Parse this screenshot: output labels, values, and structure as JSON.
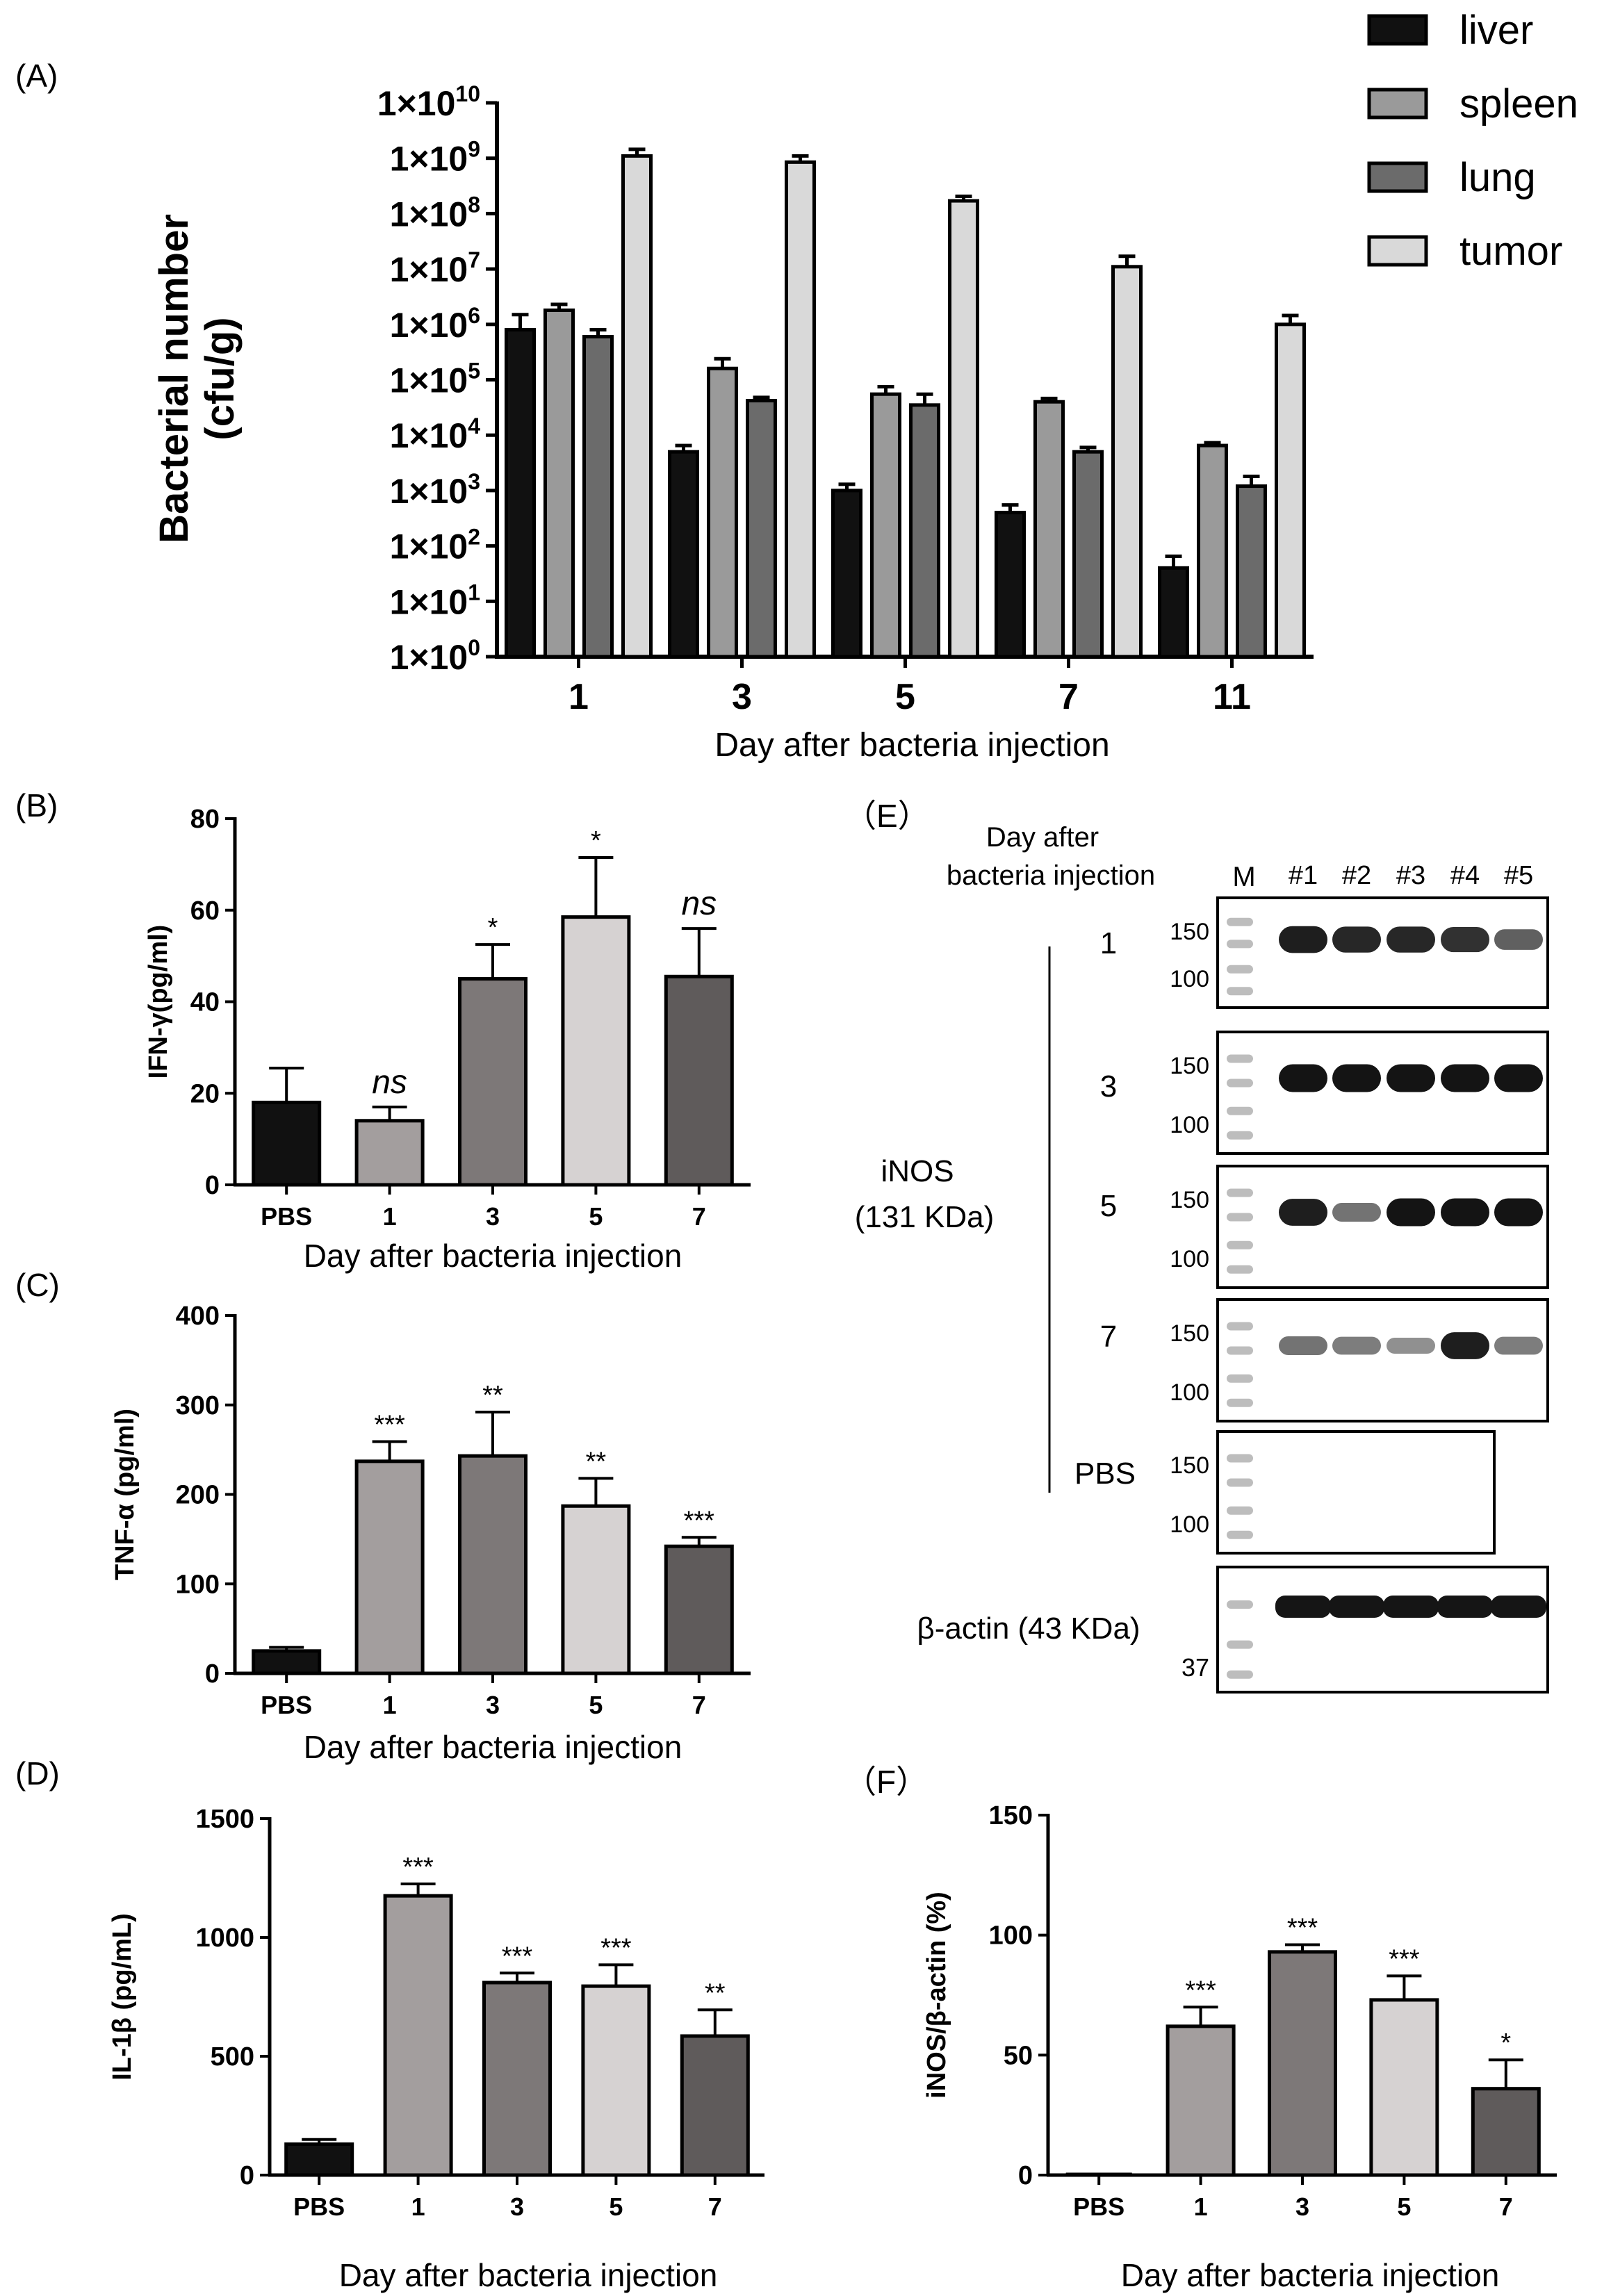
{
  "panels": {
    "A": "(A)",
    "B": "(B)",
    "C": "(C)",
    "D": "(D)",
    "E": "（E）",
    "F": "（F）"
  },
  "colors": {
    "liver": "#111111",
    "spleen": "#9a9a9a",
    "lung": "#6b6b6b",
    "tumor": "#d9d9d9",
    "pbs": "#111111",
    "d1": "#a39e9e",
    "d3": "#7d7878",
    "d5": "#d6d2d2",
    "d7": "#5f5b5b"
  },
  "chart_data": [
    {
      "id": "A",
      "type": "bar",
      "scale": "log",
      "categories": [
        "1",
        "3",
        "5",
        "7",
        "11"
      ],
      "xlabel": "Day after bacteria injection",
      "ylabel": [
        "Bacterial number",
        "(cfu/g)"
      ],
      "ylim": [
        1,
        10000000000
      ],
      "yticks": [
        {
          "value": 1,
          "base": "1×10",
          "exp": "0"
        },
        {
          "value": 10,
          "base": "1×10",
          "exp": "1"
        },
        {
          "value": 100,
          "base": "1×10",
          "exp": "2"
        },
        {
          "value": 1000,
          "base": "1×10",
          "exp": "3"
        },
        {
          "value": 10000,
          "base": "1×10",
          "exp": "4"
        },
        {
          "value": 100000,
          "base": "1×10",
          "exp": "5"
        },
        {
          "value": 1000000,
          "base": "1×10",
          "exp": "6"
        },
        {
          "value": 10000000,
          "base": "1×10",
          "exp": "7"
        },
        {
          "value": 100000000,
          "base": "1×10",
          "exp": "8"
        },
        {
          "value": 1000000000,
          "base": "1×10",
          "exp": "9"
        },
        {
          "value": 10000000000,
          "base": "1×10",
          "exp": "10"
        }
      ],
      "legend_position": "top-right",
      "series": [
        {
          "name": "liver",
          "color": "#111111",
          "values": [
            800000,
            5000,
            1000,
            400,
            40
          ],
          "err_top": [
            1500000,
            6500,
            1300,
            550,
            65
          ]
        },
        {
          "name": "spleen",
          "color": "#9a9a9a",
          "values": [
            1800000,
            160000,
            55000,
            40000,
            6500
          ],
          "err_top": [
            2300000,
            240000,
            75000,
            46000,
            7300
          ]
        },
        {
          "name": "lung",
          "color": "#6b6b6b",
          "values": [
            600000,
            42000,
            35000,
            5000,
            1200
          ],
          "err_top": [
            800000,
            48000,
            55000,
            6000,
            1800
          ]
        },
        {
          "name": "tumor",
          "color": "#d9d9d9",
          "values": [
            1100000000,
            850000000,
            170000000,
            11000000,
            1000000
          ],
          "err_top": [
            1450000000,
            1100000000,
            205000000,
            17000000,
            1450000
          ]
        }
      ]
    },
    {
      "id": "B",
      "type": "bar",
      "categories": [
        "PBS",
        "1",
        "3",
        "5",
        "7"
      ],
      "xlabel": "Day after bacteria injection",
      "ylabel": "IFN-γ(pg/ml)",
      "ylim": [
        0,
        80
      ],
      "yticks": [
        "0",
        "20",
        "40",
        "60",
        "80"
      ],
      "values": [
        18,
        14,
        45,
        58.5,
        45.5
      ],
      "err_top": [
        25.5,
        17,
        52.5,
        71.5,
        56
      ],
      "annotations": [
        "",
        "ns",
        "*",
        "*",
        "ns"
      ]
    },
    {
      "id": "C",
      "type": "bar",
      "categories": [
        "PBS",
        "1",
        "3",
        "5",
        "7"
      ],
      "xlabel": "Day after bacteria injection",
      "ylabel": "TNF-α (pg/ml)",
      "ylim": [
        0,
        400
      ],
      "yticks": [
        "0",
        "100",
        "200",
        "300",
        "400"
      ],
      "values": [
        25,
        237,
        243,
        187,
        142
      ],
      "err_top": [
        29,
        259,
        292,
        218,
        152
      ],
      "annotations": [
        "",
        "***",
        "**",
        "**",
        "***"
      ]
    },
    {
      "id": "D",
      "type": "bar",
      "categories": [
        "PBS",
        "1",
        "3",
        "5",
        "7"
      ],
      "xlabel": "Day after bacteria injection",
      "ylabel": "IL-1β (pg/mL)",
      "ylim": [
        0,
        1500
      ],
      "yticks": [
        "0",
        "500",
        "1000",
        "1500"
      ],
      "values": [
        130,
        1175,
        810,
        795,
        585
      ],
      "err_top": [
        150,
        1225,
        850,
        885,
        695
      ],
      "annotations": [
        "",
        "***",
        "***",
        "***",
        "**"
      ]
    },
    {
      "id": "F",
      "type": "bar",
      "categories": [
        "PBS",
        "1",
        "3",
        "5",
        "7"
      ],
      "xlabel": "Day after bacteria injection",
      "ylabel": "iNOS/β-actin (%)",
      "ylim": [
        0,
        150
      ],
      "yticks": [
        "0",
        "50",
        "100",
        "150"
      ],
      "values": [
        0,
        62,
        93,
        73,
        36
      ],
      "err_top": [
        0,
        70,
        96,
        83,
        48
      ],
      "annotations": [
        "",
        "***",
        "***",
        "***",
        "*"
      ]
    }
  ],
  "blot": {
    "header": [
      "Day after",
      "bacteria injection"
    ],
    "marker_label": "M",
    "lanes": [
      "#1",
      "#2",
      "#3",
      "#4",
      "#5"
    ],
    "mw_upper": "150",
    "mw_lower": "100",
    "mw_actin": "37",
    "protein_label": [
      "iNOS",
      "(131 KDa)"
    ],
    "actin_label": "β-actin (43 KDa)",
    "rows": [
      {
        "day": "1",
        "intensity": [
          0.95,
          0.9,
          0.9,
          0.85,
          0.6
        ]
      },
      {
        "day": "3",
        "intensity": [
          1,
          1,
          1,
          1,
          1
        ]
      },
      {
        "day": "5",
        "intensity": [
          0.95,
          0.5,
          1,
          1,
          1
        ]
      },
      {
        "day": "7",
        "intensity": [
          0.5,
          0.45,
          0.35,
          0.95,
          0.45
        ]
      },
      {
        "day": "PBS",
        "intensity": [
          0,
          0,
          0,
          0,
          0
        ]
      }
    ]
  }
}
